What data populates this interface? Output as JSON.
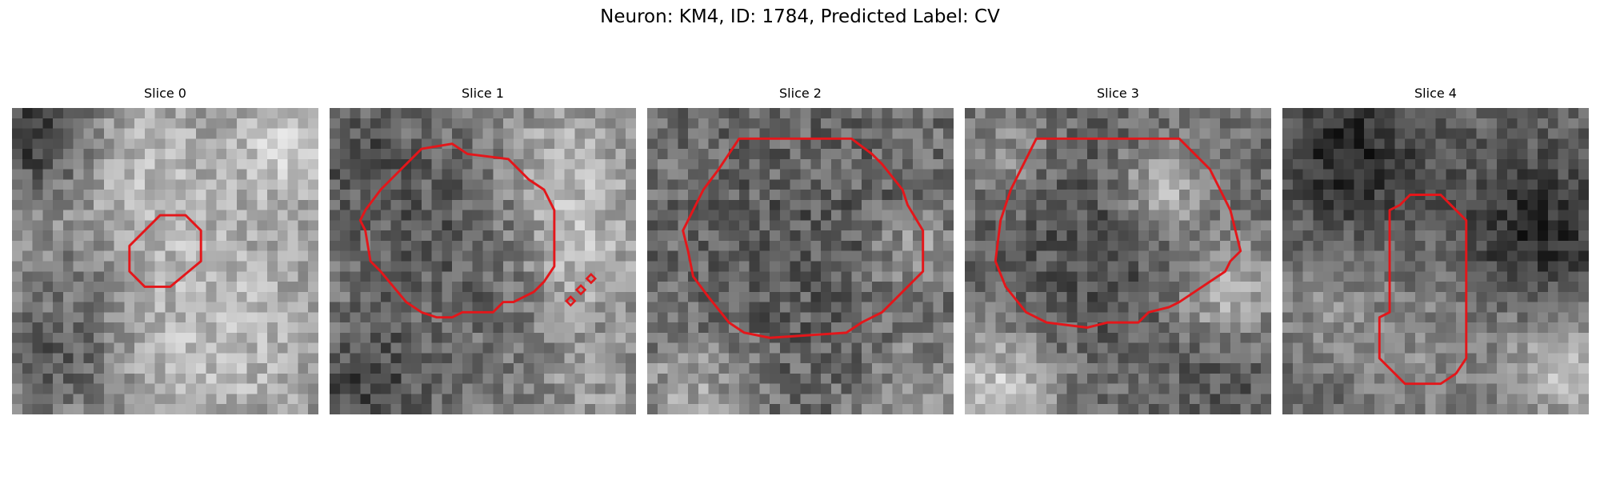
{
  "figure": {
    "title": "Neuron: KM4, ID: 1784, Predicted Label: CV"
  },
  "panels": [
    {
      "title": "Slice 0"
    },
    {
      "title": "Slice 1"
    },
    {
      "title": "Slice 2"
    },
    {
      "title": "Slice 3"
    },
    {
      "title": "Slice 4"
    }
  ],
  "colors": {
    "contour": "#e4161a",
    "background": "#ffffff"
  }
}
